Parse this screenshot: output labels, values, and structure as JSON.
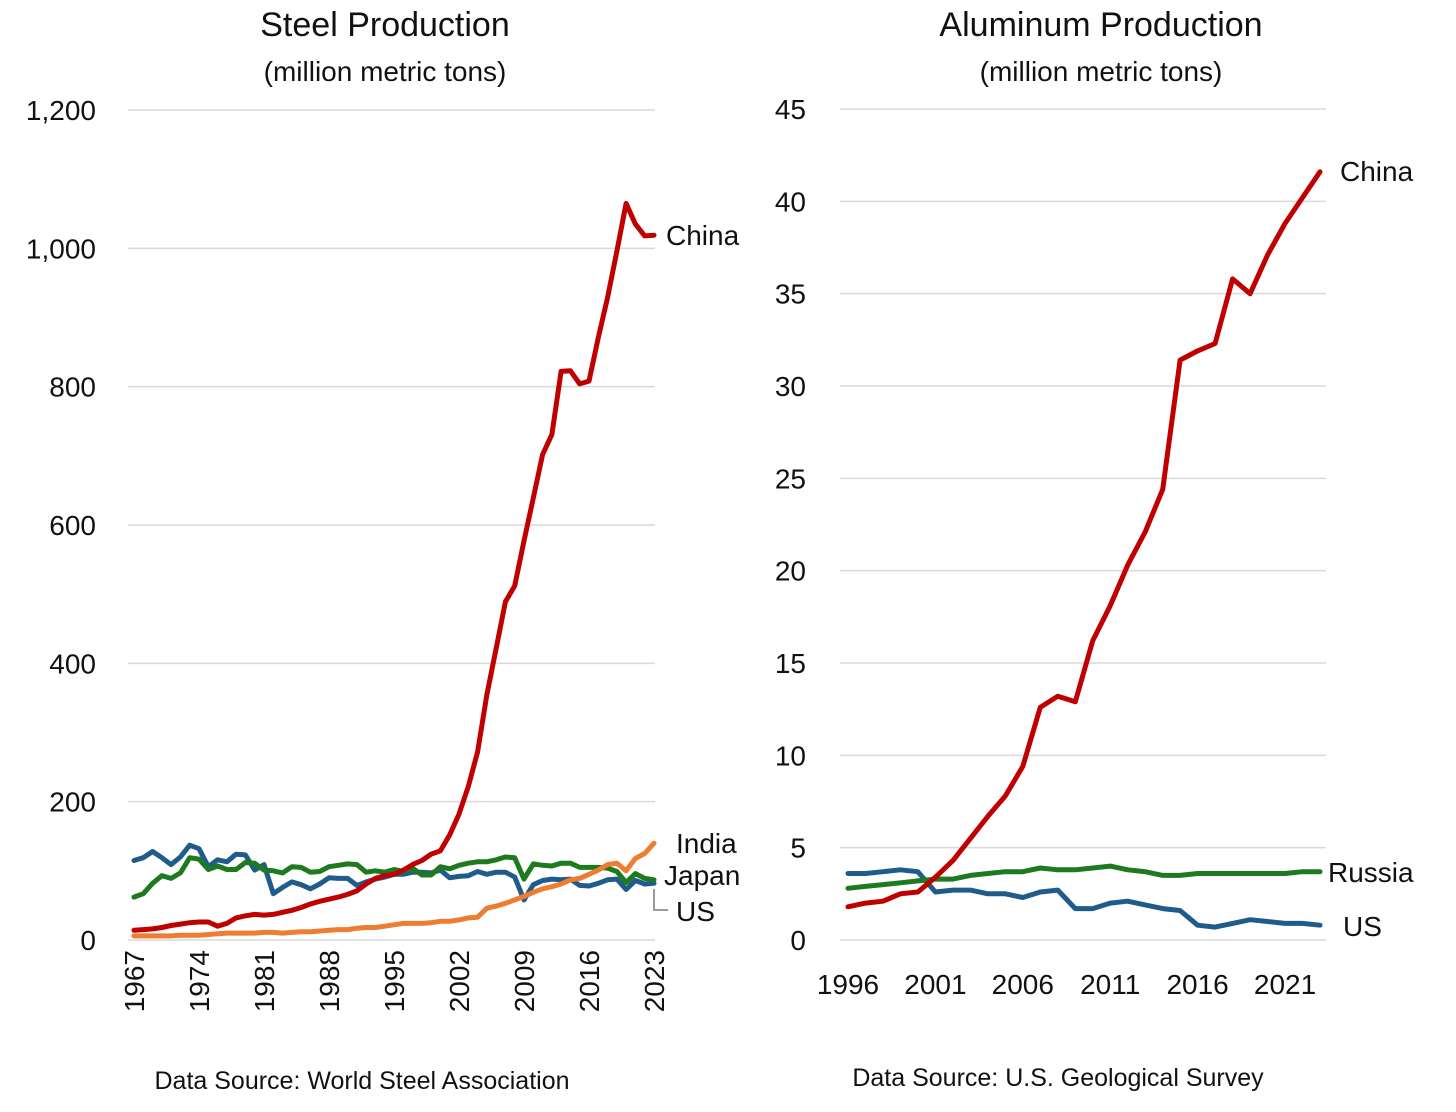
{
  "chart_data": [
    {
      "type": "line",
      "title": "Steel Production",
      "subtitle": "(million metric tons)",
      "source": "Data Source: World Steel Association",
      "ylim": [
        0,
        1200
      ],
      "yticks": [
        0,
        200,
        400,
        600,
        800,
        1000,
        1200
      ],
      "ytick_labels": [
        "0",
        "200",
        "400",
        "600",
        "800",
        "1,000",
        "1,200"
      ],
      "xlim": [
        1967,
        2023
      ],
      "xticks": [
        1967,
        1974,
        1981,
        1988,
        1995,
        2002,
        2009,
        2016,
        2023
      ],
      "xtick_labels": [
        "1967",
        "1974",
        "1981",
        "1988",
        "1995",
        "2002",
        "2009",
        "2016",
        "2023"
      ],
      "grid": true,
      "legend": "direct labels at line ends",
      "series": [
        {
          "name": "US",
          "color": "#1f5c8b",
          "x": [
            1967,
            1968,
            1969,
            1970,
            1971,
            1972,
            1973,
            1974,
            1975,
            1976,
            1977,
            1978,
            1979,
            1980,
            1981,
            1982,
            1983,
            1984,
            1985,
            1986,
            1987,
            1988,
            1989,
            1990,
            1991,
            1992,
            1993,
            1994,
            1995,
            1996,
            1997,
            1998,
            1999,
            2000,
            2001,
            2002,
            2003,
            2004,
            2005,
            2006,
            2007,
            2008,
            2009,
            2010,
            2011,
            2012,
            2013,
            2014,
            2015,
            2016,
            2017,
            2018,
            2019,
            2020,
            2021,
            2022,
            2023
          ],
          "values": [
            115,
            119,
            128,
            119,
            109,
            120,
            137,
            132,
            106,
            116,
            113,
            124,
            123,
            101,
            109,
            67,
            76,
            84,
            80,
            74,
            81,
            90,
            89,
            89,
            79,
            84,
            88,
            91,
            95,
            95,
            98,
            98,
            97,
            101,
            90,
            92,
            93,
            99,
            95,
            98,
            98,
            91,
            58,
            80,
            86,
            88,
            87,
            88,
            79,
            78,
            82,
            87,
            88,
            73,
            86,
            81,
            82
          ]
        },
        {
          "name": "Japan",
          "color": "#1e7a1e",
          "x": [
            1967,
            1968,
            1969,
            1970,
            1971,
            1972,
            1973,
            1974,
            1975,
            1976,
            1977,
            1978,
            1979,
            1980,
            1981,
            1982,
            1983,
            1984,
            1985,
            1986,
            1987,
            1988,
            1989,
            1990,
            1991,
            1992,
            1993,
            1994,
            1995,
            1996,
            1997,
            1998,
            1999,
            2000,
            2001,
            2002,
            2003,
            2004,
            2005,
            2006,
            2007,
            2008,
            2009,
            2010,
            2011,
            2012,
            2013,
            2014,
            2015,
            2016,
            2017,
            2018,
            2019,
            2020,
            2021,
            2022,
            2023
          ],
          "values": [
            62,
            67,
            82,
            93,
            89,
            97,
            119,
            117,
            102,
            107,
            102,
            102,
            112,
            111,
            101,
            100,
            97,
            106,
            105,
            98,
            99,
            106,
            108,
            110,
            109,
            98,
            100,
            98,
            102,
            99,
            104,
            94,
            94,
            106,
            103,
            108,
            111,
            113,
            113,
            116,
            120,
            119,
            88,
            110,
            108,
            107,
            111,
            111,
            105,
            105,
            105,
            104,
            99,
            83,
            96,
            89,
            87
          ]
        },
        {
          "name": "India",
          "color": "#ed7d31",
          "x": [
            1967,
            1968,
            1969,
            1970,
            1971,
            1972,
            1973,
            1974,
            1975,
            1976,
            1977,
            1978,
            1979,
            1980,
            1981,
            1982,
            1983,
            1984,
            1985,
            1986,
            1987,
            1988,
            1989,
            1990,
            1991,
            1992,
            1993,
            1994,
            1995,
            1996,
            1997,
            1998,
            1999,
            2000,
            2001,
            2002,
            2003,
            2004,
            2005,
            2006,
            2007,
            2008,
            2009,
            2010,
            2011,
            2012,
            2013,
            2014,
            2015,
            2016,
            2017,
            2018,
            2019,
            2020,
            2021,
            2022,
            2023
          ],
          "values": [
            6,
            6,
            6,
            6,
            6,
            7,
            7,
            7,
            8,
            9,
            10,
            10,
            10,
            10,
            11,
            11,
            10,
            11,
            12,
            12,
            13,
            14,
            15,
            15,
            17,
            18,
            18,
            20,
            22,
            24,
            24,
            24,
            25,
            27,
            27,
            29,
            32,
            33,
            46,
            49,
            53,
            58,
            63,
            69,
            74,
            77,
            81,
            87,
            89,
            95,
            101,
            109,
            111,
            100,
            118,
            125,
            140
          ]
        },
        {
          "name": "China",
          "color": "#c00000",
          "x": [
            1967,
            1968,
            1969,
            1970,
            1971,
            1972,
            1973,
            1974,
            1975,
            1976,
            1977,
            1978,
            1979,
            1980,
            1981,
            1982,
            1983,
            1984,
            1985,
            1986,
            1987,
            1988,
            1989,
            1990,
            1991,
            1992,
            1993,
            1994,
            1995,
            1996,
            1997,
            1998,
            1999,
            2000,
            2001,
            2002,
            2003,
            2004,
            2005,
            2006,
            2007,
            2008,
            2009,
            2010,
            2011,
            2012,
            2013,
            2014,
            2015,
            2016,
            2017,
            2018,
            2019,
            2020,
            2021,
            2022,
            2023
          ],
          "values": [
            14,
            15,
            16,
            18,
            21,
            23,
            25,
            26,
            26,
            20,
            24,
            32,
            35,
            37,
            36,
            37,
            40,
            43,
            47,
            52,
            56,
            59,
            62,
            66,
            71,
            81,
            89,
            93,
            95,
            101,
            109,
            115,
            124,
            129,
            152,
            182,
            222,
            272,
            355,
            421,
            489,
            512,
            577,
            639,
            702,
            731,
            822,
            823,
            804,
            808,
            871,
            929,
            996,
            1065,
            1035,
            1018,
            1019
          ]
        }
      ],
      "labels": {
        "china": "China",
        "india": "India",
        "japan": "Japan",
        "us": "US"
      }
    },
    {
      "type": "line",
      "title": "Aluminum Production",
      "subtitle": "(million metric tons)",
      "source": "Data Source: U.S. Geological Survey",
      "ylim": [
        0,
        45
      ],
      "yticks": [
        0,
        5,
        10,
        15,
        20,
        25,
        30,
        35,
        40,
        45
      ],
      "ytick_labels": [
        "0",
        "5",
        "10",
        "15",
        "20",
        "25",
        "30",
        "35",
        "40",
        "45"
      ],
      "xlim": [
        1996,
        2023
      ],
      "xticks": [
        1996,
        2001,
        2006,
        2011,
        2016,
        2021
      ],
      "xtick_labels": [
        "1996",
        "2001",
        "2006",
        "2011",
        "2016",
        "2021"
      ],
      "grid": true,
      "legend": "direct labels at line ends",
      "series": [
        {
          "name": "US",
          "color": "#1f5c8b",
          "x": [
            1996,
            1997,
            1998,
            1999,
            2000,
            2001,
            2002,
            2003,
            2004,
            2005,
            2006,
            2007,
            2008,
            2009,
            2010,
            2011,
            2012,
            2013,
            2014,
            2015,
            2016,
            2017,
            2018,
            2019,
            2020,
            2021,
            2022,
            2023
          ],
          "values": [
            3.6,
            3.6,
            3.7,
            3.8,
            3.7,
            2.6,
            2.7,
            2.7,
            2.5,
            2.5,
            2.3,
            2.6,
            2.7,
            1.7,
            1.7,
            2.0,
            2.1,
            1.9,
            1.7,
            1.6,
            0.8,
            0.7,
            0.9,
            1.1,
            1.0,
            0.9,
            0.9,
            0.8
          ]
        },
        {
          "name": "Russia",
          "color": "#1e7a1e",
          "x": [
            1996,
            1997,
            1998,
            1999,
            2000,
            2001,
            2002,
            2003,
            2004,
            2005,
            2006,
            2007,
            2008,
            2009,
            2010,
            2011,
            2012,
            2013,
            2014,
            2015,
            2016,
            2017,
            2018,
            2019,
            2020,
            2021,
            2022,
            2023
          ],
          "values": [
            2.8,
            2.9,
            3.0,
            3.1,
            3.2,
            3.3,
            3.3,
            3.5,
            3.6,
            3.7,
            3.7,
            3.9,
            3.8,
            3.8,
            3.9,
            4.0,
            3.8,
            3.7,
            3.5,
            3.5,
            3.6,
            3.6,
            3.6,
            3.6,
            3.6,
            3.6,
            3.7,
            3.7
          ]
        },
        {
          "name": "China",
          "color": "#c00000",
          "x": [
            1996,
            1997,
            1998,
            1999,
            2000,
            2001,
            2002,
            2003,
            2004,
            2005,
            2006,
            2007,
            2008,
            2009,
            2010,
            2011,
            2012,
            2013,
            2014,
            2015,
            2016,
            2017,
            2018,
            2019,
            2020,
            2021,
            2022,
            2023
          ],
          "values": [
            1.8,
            2.0,
            2.1,
            2.5,
            2.6,
            3.4,
            4.3,
            5.5,
            6.7,
            7.8,
            9.4,
            12.6,
            13.2,
            12.9,
            16.2,
            18.1,
            20.3,
            22.1,
            24.4,
            31.4,
            31.9,
            32.3,
            35.8,
            35.0,
            37.1,
            38.8,
            40.2,
            41.6
          ]
        }
      ],
      "labels": {
        "china": "China",
        "russia": "Russia",
        "us": "US"
      }
    }
  ]
}
